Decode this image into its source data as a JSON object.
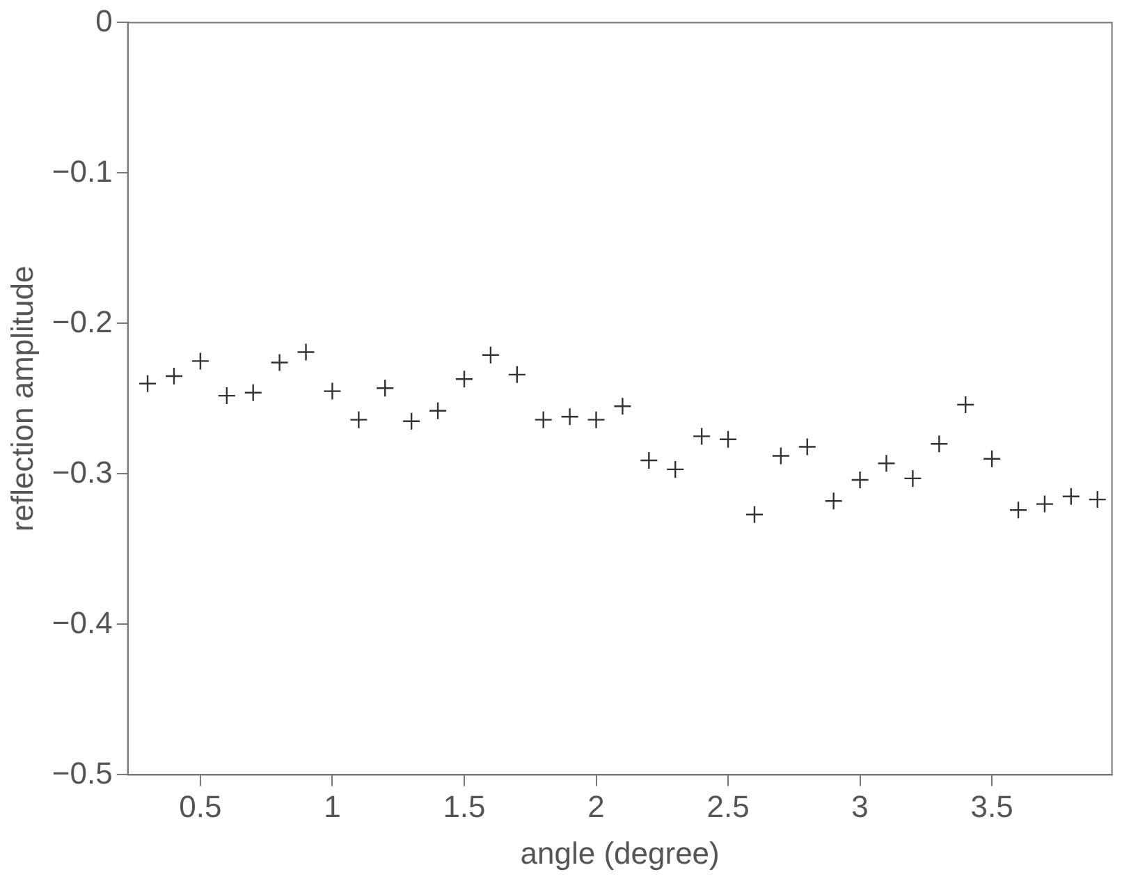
{
  "chart_data": {
    "type": "scatter",
    "xlabel": "angle (degree)",
    "ylabel": "reflection amplitude",
    "x": [
      0.3,
      0.4,
      0.5,
      0.6,
      0.7,
      0.8,
      0.9,
      1.0,
      1.1,
      1.2,
      1.3,
      1.4,
      1.5,
      1.6,
      1.7,
      1.8,
      1.9,
      2.0,
      2.1,
      2.2,
      2.3,
      2.4,
      2.5,
      2.6,
      2.7,
      2.8,
      2.9,
      3.0,
      3.1,
      3.2,
      3.3,
      3.4,
      3.5,
      3.6,
      3.7,
      3.8,
      3.9
    ],
    "series": [
      {
        "color": "#333333",
        "values": [
          -0.24,
          -0.235,
          -0.225,
          -0.248,
          -0.246,
          -0.226,
          -0.219,
          -0.245,
          -0.264,
          -0.243,
          -0.265,
          -0.258,
          -0.237,
          -0.221,
          -0.234,
          -0.264,
          -0.262,
          -0.264,
          -0.255,
          -0.291,
          -0.297,
          -0.275,
          -0.277,
          -0.327,
          -0.288,
          -0.282,
          -0.318,
          -0.304,
          -0.293,
          -0.303,
          -0.28,
          -0.254,
          -0.29,
          -0.324,
          -0.32,
          -0.315,
          -0.317
        ]
      }
    ],
    "xlim": [
      0.225,
      3.955
    ],
    "xticks": [
      0.5,
      1,
      1.5,
      2,
      2.5,
      3,
      3.5
    ],
    "ylim": [
      -0.5,
      0
    ],
    "yticks": [
      {
        "value": -0.5,
        "label": "−0.5"
      },
      {
        "value": -0.4,
        "label": "−0.4"
      },
      {
        "value": -0.3,
        "label": "−0.3"
      },
      {
        "value": -0.2,
        "label": "−0.2"
      },
      {
        "value": -0.1,
        "label": "−0.1"
      },
      0
    ],
    "grid": false,
    "legend": false,
    "marker": "cross"
  }
}
